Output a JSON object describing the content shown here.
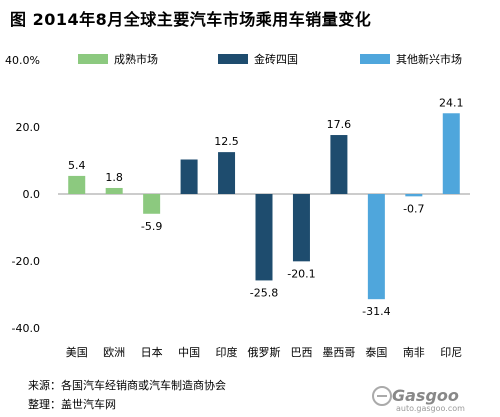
{
  "page": {
    "title": "图  2014年8月全球主要汽车市场乘用车销量变化",
    "source": "来源：各国汽车经销商或汽车制造商协会",
    "compiled": "整理：盖世汽车网",
    "logo_text": "Gasgoo",
    "logo_url": "auto.gasgoo.com"
  },
  "chart_data": {
    "type": "bar",
    "title": "图  2014年8月全球主要汽车市场乘用车销量变化",
    "categories": [
      "美国",
      "欧洲",
      "日本",
      "中国",
      "印度",
      "俄罗斯",
      "巴西",
      "墨西哥",
      "泰国",
      "南非",
      "印尼"
    ],
    "values": [
      5.4,
      1.8,
      -5.9,
      10.3,
      12.5,
      -25.8,
      -20.1,
      17.6,
      -31.4,
      -0.7,
      24.1
    ],
    "value_labels": [
      "5.4",
      "1.8",
      "-5.9",
      "",
      "12.5",
      "-25.8",
      "-20.1",
      "17.6",
      "-31.4",
      "-0.7",
      "24.1"
    ],
    "groups": [
      0,
      0,
      0,
      1,
      1,
      1,
      1,
      1,
      2,
      2,
      2
    ],
    "legend": [
      {
        "name": "成熟市场",
        "color": "#8cc97f"
      },
      {
        "name": "金砖四国",
        "color": "#1e4c6e"
      },
      {
        "name": "其他新兴市场",
        "color": "#4fa6dc"
      }
    ],
    "legend_position": "top",
    "ylim": [
      -40,
      40
    ],
    "yticks": [
      -40,
      -20,
      0,
      20,
      40
    ],
    "ytick_labels": [
      "-40.0",
      "-20.0",
      "0.0",
      "20.0",
      "40.0%"
    ],
    "grid": false,
    "xlabel": "",
    "ylabel": ""
  }
}
